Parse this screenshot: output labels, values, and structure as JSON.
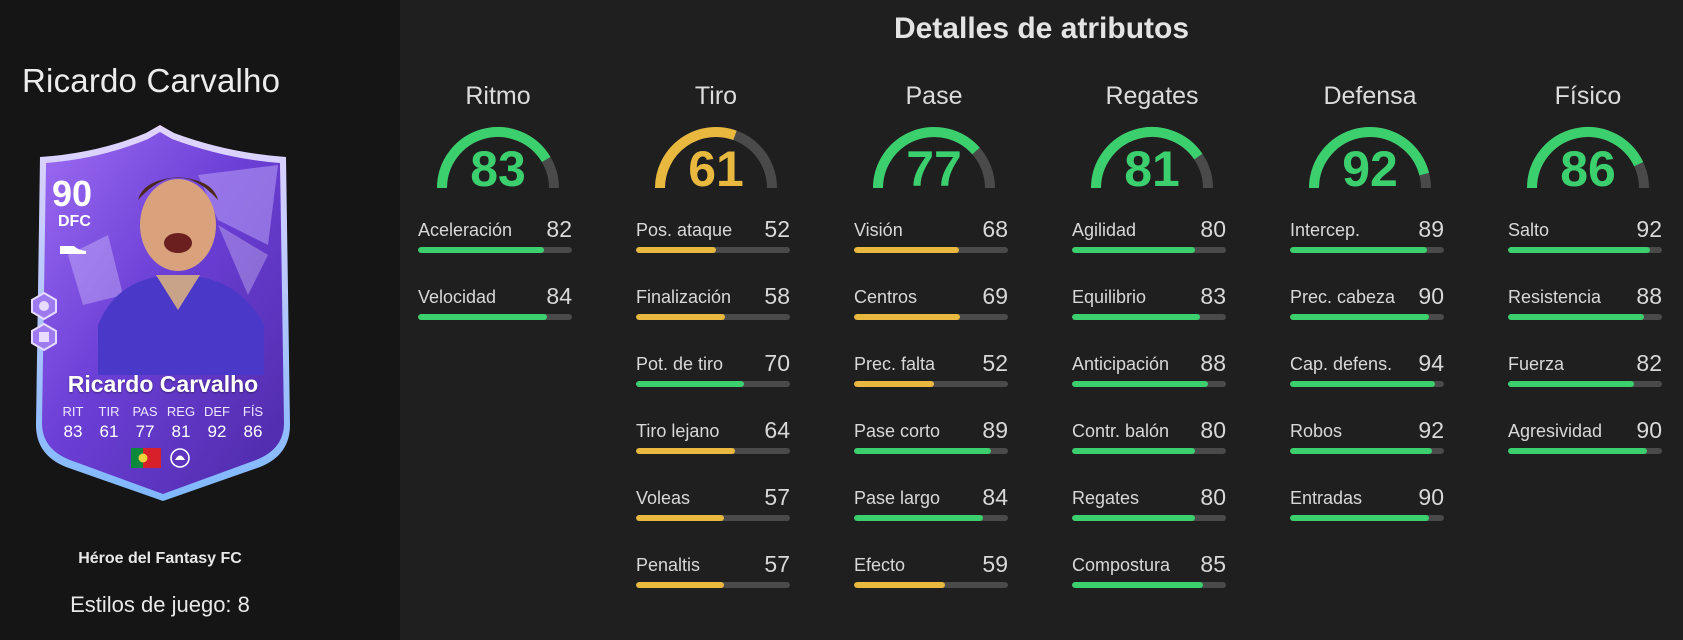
{
  "player": {
    "name": "Ricardo Carvalho",
    "card": {
      "rating": "90",
      "position": "DFC",
      "name": "Ricardo Carvalho",
      "stats": [
        {
          "label": "RIT",
          "value": "83"
        },
        {
          "label": "TIR",
          "value": "61"
        },
        {
          "label": "PAS",
          "value": "77"
        },
        {
          "label": "REG",
          "value": "81"
        },
        {
          "label": "DEF",
          "value": "92"
        },
        {
          "label": "FÍS",
          "value": "86"
        }
      ],
      "flags": [
        "portugal-flag-icon",
        "premier-league-icon"
      ],
      "colors": {
        "primary": "#7a48e0",
        "secondary": "#b07cff",
        "edge": "#d5c3ff"
      }
    },
    "card_type": "Héroe del Fantasy FC",
    "playstyles": "Estilos de juego: 8"
  },
  "attributes_title": "Detalles de atributos",
  "colors": {
    "high": "#3ccf6e",
    "mid": "#e8b93e",
    "track": "#4a4a4a"
  },
  "categories": [
    {
      "title": "Ritmo",
      "value": "83",
      "attributes": [
        {
          "name": "Aceleración",
          "value": "82"
        },
        {
          "name": "Velocidad",
          "value": "84"
        }
      ]
    },
    {
      "title": "Tiro",
      "value": "61",
      "attributes": [
        {
          "name": "Pos. ataque",
          "value": "52"
        },
        {
          "name": "Finalización",
          "value": "58"
        },
        {
          "name": "Pot. de tiro",
          "value": "70"
        },
        {
          "name": "Tiro lejano",
          "value": "64"
        },
        {
          "name": "Voleas",
          "value": "57"
        },
        {
          "name": "Penaltis",
          "value": "57"
        }
      ]
    },
    {
      "title": "Pase",
      "value": "77",
      "attributes": [
        {
          "name": "Visión",
          "value": "68"
        },
        {
          "name": "Centros",
          "value": "69"
        },
        {
          "name": "Prec. falta",
          "value": "52"
        },
        {
          "name": "Pase corto",
          "value": "89"
        },
        {
          "name": "Pase largo",
          "value": "84"
        },
        {
          "name": "Efecto",
          "value": "59"
        }
      ]
    },
    {
      "title": "Regates",
      "value": "81",
      "attributes": [
        {
          "name": "Agilidad",
          "value": "80"
        },
        {
          "name": "Equilibrio",
          "value": "83"
        },
        {
          "name": "Anticipación",
          "value": "88"
        },
        {
          "name": "Contr. balón",
          "value": "80"
        },
        {
          "name": "Regates",
          "value": "80"
        },
        {
          "name": "Compostura",
          "value": "85"
        }
      ]
    },
    {
      "title": "Defensa",
      "value": "92",
      "attributes": [
        {
          "name": "Intercep.",
          "value": "89"
        },
        {
          "name": "Prec. cabeza",
          "value": "90"
        },
        {
          "name": "Cap. defens.",
          "value": "94"
        },
        {
          "name": "Robos",
          "value": "92"
        },
        {
          "name": "Entradas",
          "value": "90"
        }
      ]
    },
    {
      "title": "Físico",
      "value": "86",
      "attributes": [
        {
          "name": "Salto",
          "value": "92"
        },
        {
          "name": "Resistencia",
          "value": "88"
        },
        {
          "name": "Fuerza",
          "value": "82"
        },
        {
          "name": "Agresividad",
          "value": "90"
        }
      ]
    }
  ]
}
